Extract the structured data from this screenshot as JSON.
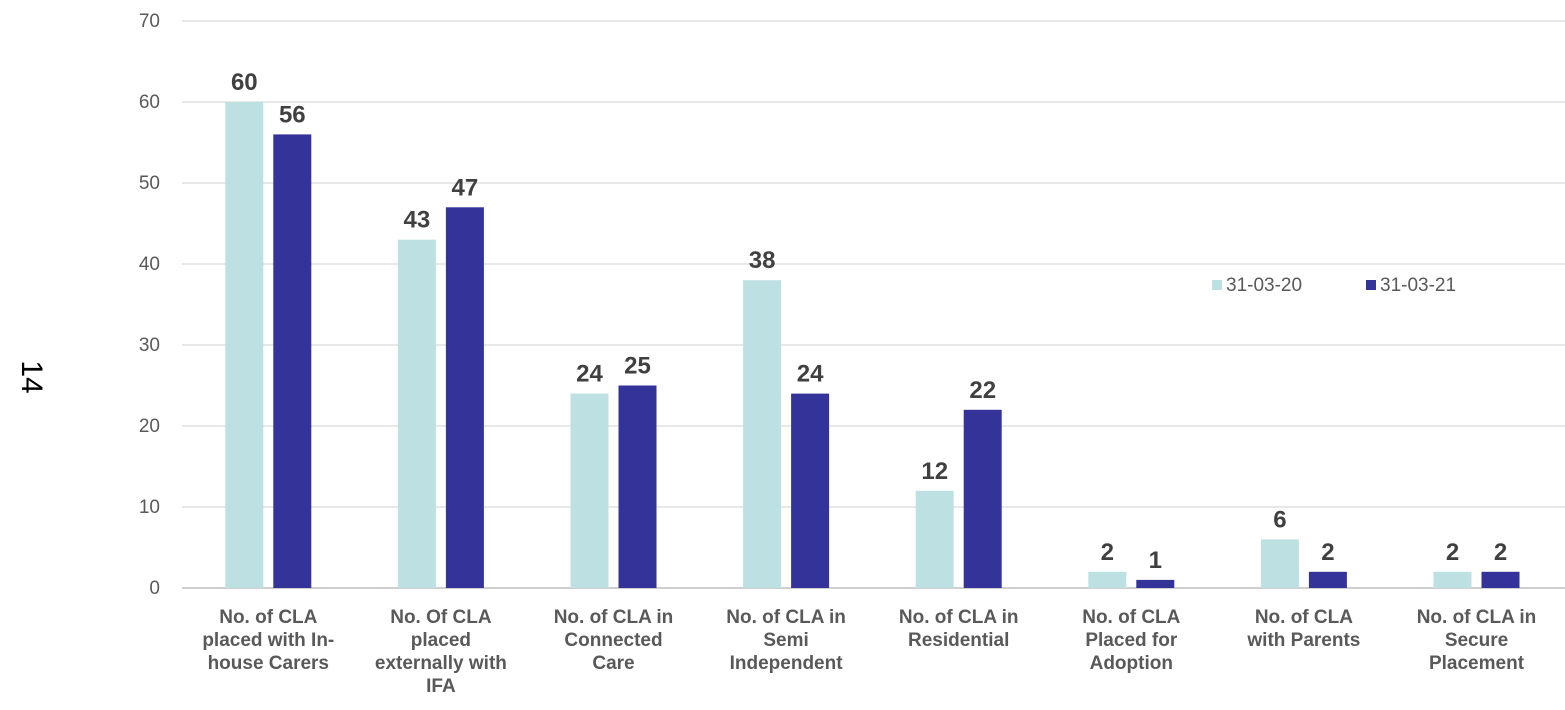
{
  "page_number": "14",
  "chart_data": {
    "type": "bar",
    "title": "",
    "xlabel": "",
    "ylabel": "",
    "ylim": [
      0,
      70
    ],
    "yticks": [
      0,
      10,
      20,
      30,
      40,
      50,
      60,
      70
    ],
    "grid": true,
    "legend_position": "right",
    "categories": [
      [
        "No. of CLA",
        "placed with In-",
        "house Carers"
      ],
      [
        "No. Of CLA",
        "placed",
        "externally with",
        "IFA"
      ],
      [
        "No. of CLA in",
        "Connected",
        "Care"
      ],
      [
        "No. of CLA in",
        "Semi",
        "Independent"
      ],
      [
        "No. of CLA in",
        "Residential"
      ],
      [
        "No. of CLA",
        "Placed for",
        "Adoption"
      ],
      [
        "No. of CLA",
        "with Parents"
      ],
      [
        "No. of CLA in",
        "Secure",
        "Placement"
      ]
    ],
    "series": [
      {
        "name": "31-03-20",
        "color": "#bde0e2",
        "values": [
          60,
          43,
          24,
          38,
          12,
          2,
          6,
          2
        ]
      },
      {
        "name": "31-03-21",
        "color": "#33339a",
        "values": [
          56,
          47,
          25,
          24,
          22,
          1,
          2,
          2
        ]
      }
    ]
  }
}
